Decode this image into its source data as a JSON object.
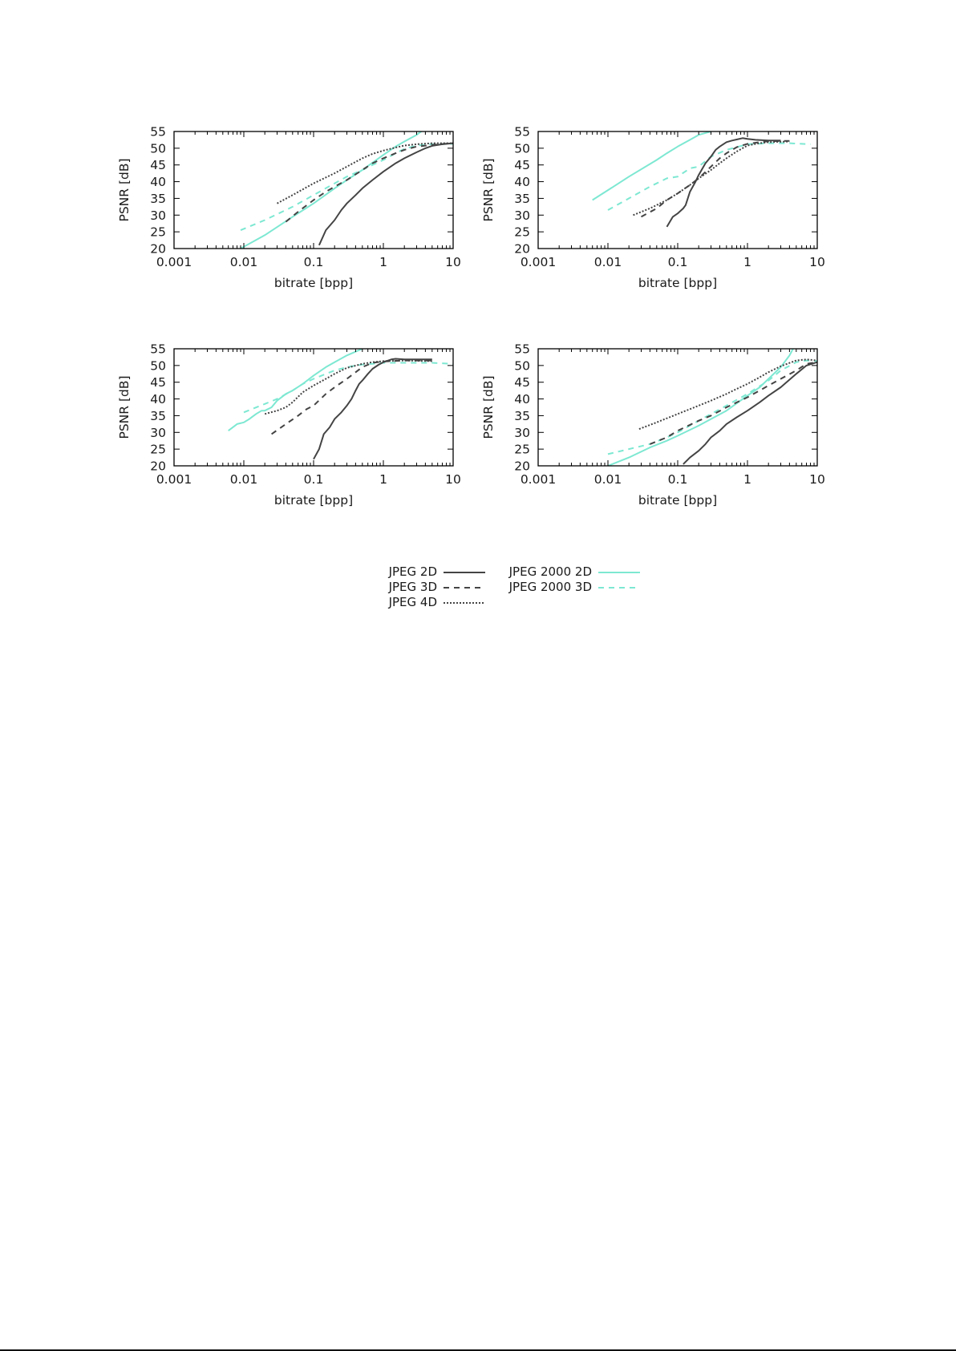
{
  "colors": {
    "jpeg": "#444444",
    "jpeg2000": "#7de8d2",
    "axis": "#000000",
    "text": "#1a1a1a"
  },
  "legend": [
    {
      "label": "JPEG 2D",
      "color": "#444444",
      "style": "solid"
    },
    {
      "label": "JPEG 3D",
      "color": "#444444",
      "style": "dashed"
    },
    {
      "label": "JPEG 4D",
      "color": "#444444",
      "style": "dotted"
    },
    {
      "label": "JPEG 2000 2D",
      "color": "#7de8d2",
      "style": "solid"
    },
    {
      "label": "JPEG 2000 3D",
      "color": "#7de8d2",
      "style": "dashed"
    }
  ],
  "chart_data": [
    {
      "type": "line",
      "panel": "top-left",
      "title": "",
      "xlabel": "bitrate [bpp]",
      "ylabel": "PSNR [dB]",
      "xscale": "log",
      "xlim": [
        0.001,
        10
      ],
      "ylim": [
        20,
        55
      ],
      "xticks": [
        "0.001",
        "0.01",
        "0.1",
        "1",
        "10"
      ],
      "yticks": [
        "20",
        "25",
        "30",
        "35",
        "40",
        "45",
        "50",
        "55"
      ],
      "grid": false,
      "series": [
        {
          "name": "JPEG 2D",
          "x": [
            0.12,
            0.15,
            0.2,
            0.25,
            0.3,
            0.4,
            0.5,
            0.7,
            1,
            1.5,
            2,
            3,
            4,
            5,
            7,
            10
          ],
          "y": [
            21,
            25.5,
            28.5,
            31.5,
            33.5,
            36,
            38,
            40.5,
            43,
            45.5,
            47,
            48.8,
            50,
            50.7,
            51.2,
            51.5
          ]
        },
        {
          "name": "JPEG 3D",
          "x": [
            0.04,
            0.06,
            0.1,
            0.15,
            0.2,
            0.3,
            0.5,
            0.7,
            1,
            1.5,
            2,
            3,
            5,
            10
          ],
          "y": [
            28,
            31,
            34.5,
            37,
            38.5,
            40.5,
            43.5,
            45.5,
            47,
            48.5,
            49.5,
            50.5,
            51,
            51.5
          ]
        },
        {
          "name": "JPEG 4D",
          "x": [
            0.03,
            0.05,
            0.1,
            0.2,
            0.3,
            0.5,
            0.7,
            1,
            1.5,
            2,
            3,
            5,
            10
          ],
          "y": [
            33.5,
            36,
            39.5,
            42.5,
            44.5,
            47,
            48.3,
            49.3,
            50.2,
            50.8,
            51.2,
            51.5,
            51.5
          ]
        },
        {
          "name": "JPEG 2000 2D",
          "x": [
            0.009,
            0.02,
            0.05,
            0.1,
            0.2,
            0.3,
            0.5,
            1,
            1.5,
            2,
            3,
            3.5
          ],
          "y": [
            20,
            24,
            29.5,
            33.5,
            38,
            40.5,
            43.5,
            48,
            50.5,
            52,
            54,
            55
          ]
        },
        {
          "name": "JPEG 2000 3D",
          "x": [
            0.009,
            0.02,
            0.05,
            0.1,
            0.2,
            0.3,
            0.5,
            0.7,
            1,
            1.5,
            2,
            3,
            5,
            10
          ],
          "y": [
            25.5,
            28.5,
            32.5,
            36,
            39.5,
            41.5,
            43.5,
            45,
            46.5,
            48.5,
            49.8,
            50.8,
            51.2,
            51.3
          ]
        }
      ]
    },
    {
      "type": "line",
      "panel": "top-right",
      "title": "",
      "xlabel": "bitrate [bpp]",
      "ylabel": "PSNR [dB]",
      "xscale": "log",
      "xlim": [
        0.001,
        10
      ],
      "ylim": [
        20,
        55
      ],
      "xticks": [
        "0.001",
        "0.01",
        "0.1",
        "1",
        "10"
      ],
      "yticks": [
        "20",
        "25",
        "30",
        "35",
        "40",
        "45",
        "50",
        "55"
      ],
      "grid": false,
      "series": [
        {
          "name": "JPEG 2D",
          "x": [
            0.07,
            0.085,
            0.1,
            0.12,
            0.13,
            0.15,
            0.18,
            0.2,
            0.25,
            0.3,
            0.35,
            0.4,
            0.5,
            0.6,
            0.7,
            0.85,
            1,
            1.3,
            2,
            3
          ],
          "y": [
            26.5,
            29.5,
            30.5,
            32,
            33,
            37,
            40,
            42,
            45.5,
            47.5,
            49.5,
            50.5,
            51.8,
            52.3,
            52.6,
            53,
            52.8,
            52.5,
            52.3,
            52.3
          ]
        },
        {
          "name": "JPEG 3D",
          "x": [
            0.03,
            0.05,
            0.07,
            0.1,
            0.15,
            0.2,
            0.3,
            0.4,
            0.5,
            0.7,
            1,
            1.5,
            2,
            4
          ],
          "y": [
            29.5,
            32,
            34.5,
            36.5,
            39,
            41,
            44.5,
            47,
            48.5,
            50.3,
            51.3,
            51.8,
            52.1,
            52.2
          ]
        },
        {
          "name": "JPEG 4D",
          "x": [
            0.023,
            0.04,
            0.07,
            0.1,
            0.15,
            0.2,
            0.3,
            0.4,
            0.5,
            0.7,
            1,
            1.5,
            2,
            4
          ],
          "y": [
            30,
            32,
            34.5,
            36.5,
            39,
            41,
            43.5,
            45.5,
            47,
            49,
            50.8,
            51.5,
            51.8,
            52
          ]
        },
        {
          "name": "JPEG 2000 2D",
          "x": [
            0.006,
            0.011,
            0.02,
            0.05,
            0.07,
            0.1,
            0.15,
            0.2,
            0.3
          ],
          "y": [
            34.5,
            38,
            41.5,
            46.5,
            48.5,
            50.5,
            52.5,
            54,
            55
          ]
        },
        {
          "name": "JPEG 2000 3D",
          "x": [
            0.01,
            0.02,
            0.04,
            0.07,
            0.1,
            0.15,
            0.2,
            0.3,
            0.5,
            1,
            2,
            4,
            8
          ],
          "y": [
            31.5,
            35,
            38.5,
            41,
            41.5,
            44,
            44.5,
            47.5,
            49.5,
            51.2,
            51.5,
            51.5,
            51.2
          ]
        }
      ]
    },
    {
      "type": "line",
      "panel": "bottom-left",
      "title": "",
      "xlabel": "bitrate [bpp]",
      "ylabel": "PSNR [dB]",
      "xscale": "log",
      "xlim": [
        0.001,
        10
      ],
      "ylim": [
        20,
        55
      ],
      "xticks": [
        "0.001",
        "0.01",
        "0.1",
        "1",
        "10"
      ],
      "yticks": [
        "20",
        "25",
        "30",
        "35",
        "40",
        "45",
        "50",
        "55"
      ],
      "grid": false,
      "series": [
        {
          "name": "JPEG 2D",
          "x": [
            0.1,
            0.12,
            0.14,
            0.17,
            0.2,
            0.25,
            0.3,
            0.35,
            0.4,
            0.45,
            0.5,
            0.6,
            0.7,
            0.85,
            1,
            1.3,
            1.5,
            2,
            3,
            5
          ],
          "y": [
            22,
            25,
            29.5,
            31.5,
            34,
            36,
            38,
            40,
            42.5,
            44.5,
            45.5,
            47.5,
            49,
            50.2,
            51,
            51.8,
            52,
            51.8,
            51.8,
            51.8
          ]
        },
        {
          "name": "JPEG 3D",
          "x": [
            0.025,
            0.04,
            0.06,
            0.08,
            0.1,
            0.15,
            0.2,
            0.3,
            0.5,
            0.7,
            1,
            2,
            5
          ],
          "y": [
            29.5,
            32.5,
            35,
            37,
            38,
            41.5,
            43.5,
            46,
            49.5,
            50.8,
            51.2,
            51.5,
            51.5
          ]
        },
        {
          "name": "JPEG 4D",
          "x": [
            0.02,
            0.03,
            0.04,
            0.05,
            0.07,
            0.1,
            0.15,
            0.2,
            0.3,
            0.5,
            0.7,
            1,
            2,
            5
          ],
          "y": [
            35.5,
            36.5,
            37.5,
            39,
            42,
            44,
            46,
            47.5,
            49.3,
            50.5,
            51,
            51.3,
            51.5,
            51.3
          ]
        },
        {
          "name": "JPEG 2000 2D",
          "x": [
            0.006,
            0.008,
            0.01,
            0.012,
            0.015,
            0.018,
            0.02,
            0.025,
            0.03,
            0.04,
            0.05,
            0.07,
            0.1,
            0.15,
            0.2,
            0.3,
            0.5
          ],
          "y": [
            30.5,
            32.5,
            33,
            34,
            35.5,
            36.5,
            36.5,
            37.5,
            39.5,
            41.5,
            42.5,
            44.5,
            47,
            49.5,
            51,
            53,
            55
          ]
        },
        {
          "name": "JPEG 2000 3D",
          "x": [
            0.01,
            0.02,
            0.03,
            0.05,
            0.07,
            0.1,
            0.15,
            0.2,
            0.3,
            0.5,
            0.7,
            1,
            2,
            5,
            10
          ],
          "y": [
            36,
            38.5,
            40,
            42.5,
            44.5,
            46,
            47.5,
            48.5,
            49.5,
            50.3,
            50.5,
            50.8,
            50.8,
            50.8,
            50.5
          ]
        }
      ]
    },
    {
      "type": "line",
      "panel": "bottom-right",
      "title": "",
      "xlabel": "bitrate [bpp]",
      "ylabel": "PSNR [dB]",
      "xscale": "log",
      "xlim": [
        0.001,
        10
      ],
      "ylim": [
        20,
        55
      ],
      "xticks": [
        "0.001",
        "0.01",
        "0.1",
        "1",
        "10"
      ],
      "yticks": [
        "20",
        "25",
        "30",
        "35",
        "40",
        "45",
        "50",
        "55"
      ],
      "grid": false,
      "series": [
        {
          "name": "JPEG 2D",
          "x": [
            0.12,
            0.15,
            0.2,
            0.25,
            0.3,
            0.4,
            0.5,
            0.7,
            1,
            1.5,
            2,
            3,
            5,
            7,
            10
          ],
          "y": [
            20.5,
            22.5,
            24.5,
            26.5,
            28.5,
            30.5,
            32.5,
            34.5,
            36.5,
            39,
            41,
            43.5,
            47.5,
            50,
            51
          ]
        },
        {
          "name": "JPEG 3D",
          "x": [
            0.04,
            0.07,
            0.1,
            0.2,
            0.3,
            0.5,
            1,
            2,
            3,
            5,
            7,
            10
          ],
          "y": [
            26.5,
            28.5,
            30.5,
            33.5,
            35,
            37.5,
            40.5,
            44,
            46,
            48.5,
            50.5,
            51
          ]
        },
        {
          "name": "JPEG 4D",
          "x": [
            0.028,
            0.05,
            0.1,
            0.2,
            0.3,
            0.5,
            0.7,
            1,
            1.5,
            2,
            3,
            5,
            7,
            10
          ],
          "y": [
            31,
            33,
            35.5,
            38,
            39.5,
            41.5,
            43,
            44.5,
            46.5,
            48,
            49.8,
            51.5,
            51.8,
            51.5
          ]
        },
        {
          "name": "JPEG 2000 2D",
          "x": [
            0.01,
            0.02,
            0.04,
            0.07,
            0.1,
            0.2,
            0.3,
            0.5,
            1,
            1.5,
            2,
            3,
            4,
            4.5
          ],
          "y": [
            20,
            22.5,
            25.5,
            27.5,
            29,
            32,
            34,
            36.5,
            41,
            43.5,
            46,
            49.5,
            53,
            55
          ]
        },
        {
          "name": "JPEG 2000 3D",
          "x": [
            0.01,
            0.02,
            0.04,
            0.07,
            0.1,
            0.2,
            0.3,
            0.5,
            1,
            2,
            3,
            5,
            7,
            10
          ],
          "y": [
            23.5,
            25,
            26.5,
            28.5,
            30,
            33.5,
            35.5,
            38,
            41.5,
            45.5,
            48.5,
            51,
            51.5,
            51.3
          ]
        }
      ]
    }
  ]
}
